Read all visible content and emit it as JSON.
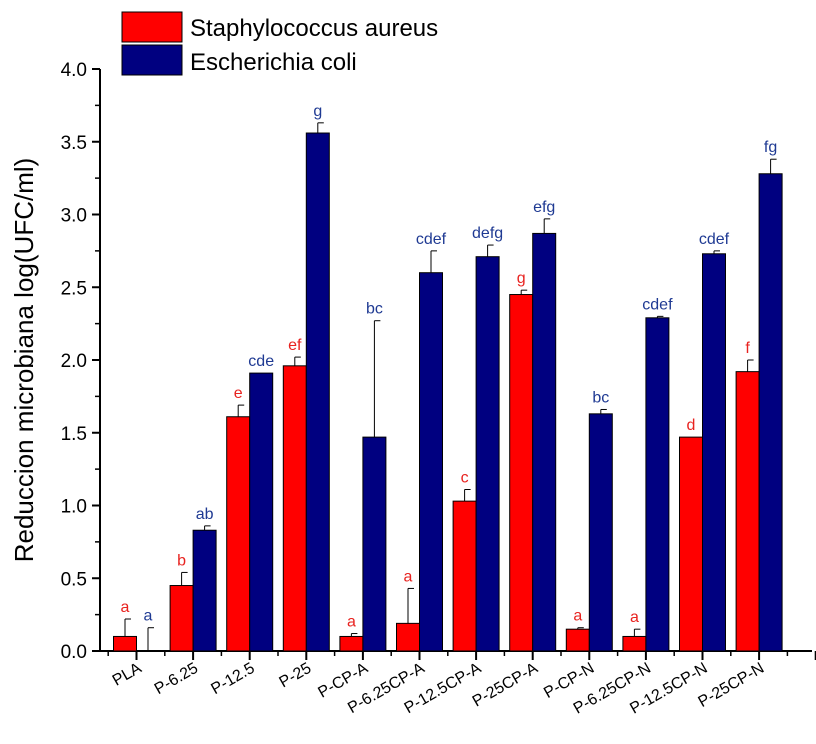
{
  "chart_data": {
    "type": "bar",
    "title": "",
    "xlabel": "",
    "ylabel": "Reduccion microbiana log(UFC/ml)",
    "ylim": [
      0,
      4.0
    ],
    "yticks": [
      "0.0",
      "0.5",
      "1.0",
      "1.5",
      "2.0",
      "2.5",
      "3.0",
      "3.5",
      "4.0"
    ],
    "grid": false,
    "legend_position": "top-left",
    "categories": [
      "PLA",
      "P-6.25",
      "P-12.5",
      "P-25",
      "P-CP-A",
      "P-6.25CP-A",
      "P-12.5CP-A",
      "P-25CP-A",
      "P-CP-N",
      "P-6.25CP-N",
      "P-12.5CP-N",
      "P-25CP-N"
    ],
    "series": [
      {
        "name": "Staphylococcus aureus",
        "color": "#ff0000",
        "label_color": "#e8221f",
        "values": [
          0.1,
          0.45,
          1.61,
          1.96,
          0.1,
          0.19,
          1.03,
          2.45,
          0.15,
          0.1,
          1.47,
          1.92
        ],
        "errors": [
          0.12,
          0.09,
          0.08,
          0.06,
          0.02,
          0.24,
          0.08,
          0.03,
          0.01,
          0.05,
          0.0,
          0.08
        ],
        "labels": [
          "a",
          "b",
          "e",
          "ef",
          "a",
          "a",
          "c",
          "g",
          "a",
          "a",
          "d",
          "f"
        ]
      },
      {
        "name": "Escherichia coli",
        "color": "#000080",
        "label_color": "#1f3a93",
        "values": [
          0.0,
          0.83,
          1.91,
          3.56,
          1.47,
          2.6,
          2.71,
          2.87,
          1.63,
          2.29,
          2.73,
          3.28
        ],
        "errors": [
          0.16,
          0.03,
          0.0,
          0.07,
          0.8,
          0.15,
          0.08,
          0.1,
          0.03,
          0.01,
          0.02,
          0.1
        ],
        "labels": [
          "a",
          "ab",
          "cde",
          "g",
          "bc",
          "cdef",
          "defg",
          "efg",
          "bc",
          "cdef",
          "cdef",
          "fg"
        ]
      }
    ]
  }
}
